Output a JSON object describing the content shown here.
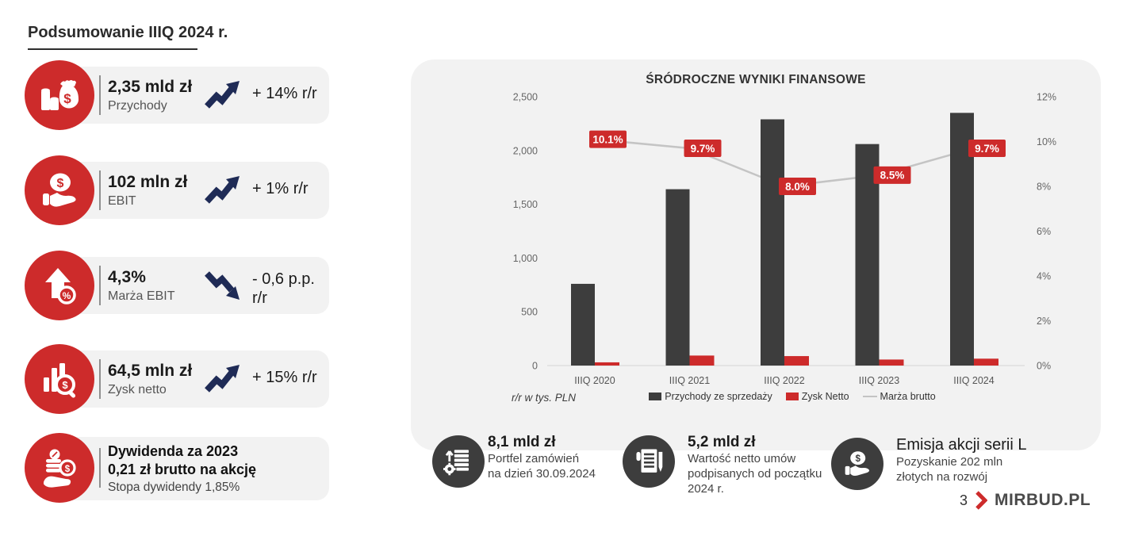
{
  "page": {
    "title": "Podsumowanie IIIQ 2024 r."
  },
  "colors": {
    "red": "#cd2b2b",
    "dark_bar": "#3d3d3d",
    "navy_arrow": "#1f2b56",
    "panel_gray": "#f2f2f2",
    "line_gray": "#c4c4c4"
  },
  "kpi_cards": [
    {
      "icon": "money-bag-icon",
      "value": "2,35 mld zł",
      "label": "Przychody",
      "trend": "up",
      "change": "+ 14% r/r"
    },
    {
      "icon": "hand-dollar-icon",
      "value": "102 mln zł",
      "label": "EBIT",
      "trend": "up",
      "change": "+ 1% r/r"
    },
    {
      "icon": "arrow-percent-icon",
      "value": "4,3%",
      "label": "Marża EBIT",
      "trend": "down",
      "change": "- 0,6 p.p.",
      "change_line2": "r/r"
    },
    {
      "icon": "chart-magnifier-icon",
      "value": "64,5 mln zł",
      "label": "Zysk netto",
      "trend": "up",
      "change": "+ 15% r/r"
    },
    {
      "icon": "coins-hand-icon",
      "title_lines": [
        "Dywidenda za 2023",
        "0,21 zł brutto na akcję"
      ],
      "label": "Stopa dywidendy 1,85%"
    }
  ],
  "chart_data": {
    "type": "bar+line",
    "title": "ŚRÓDROCZNE WYNIKI FINANSOWE",
    "categories": [
      "IIIQ 2020",
      "IIIQ 2021",
      "IIIQ 2022",
      "IIIQ 2023",
      "IIIQ 2024"
    ],
    "series": [
      {
        "name": "Przychody ze sprzedaży",
        "type": "bar",
        "color": "#3d3d3d",
        "axis": "left",
        "values": [
          760,
          1640,
          2290,
          2060,
          2350
        ]
      },
      {
        "name": "Zysk Netto",
        "type": "bar",
        "color": "#cd2b2b",
        "axis": "left",
        "values": [
          30,
          93,
          88,
          56,
          64
        ]
      },
      {
        "name": "Marża brutto",
        "type": "line",
        "color": "#c4c4c4",
        "axis": "right",
        "values": [
          10.1,
          9.7,
          8.0,
          8.5,
          9.7
        ],
        "labels": [
          "10.1%",
          "9.7%",
          "8.0%",
          "8.5%",
          "9.7%"
        ]
      }
    ],
    "left_axis": {
      "min": 0,
      "max": 2500,
      "step": 500,
      "ticks": [
        "0",
        "500",
        "1,000",
        "1,500",
        "2,000",
        "2,500"
      ]
    },
    "right_axis": {
      "min": 0,
      "max": 12,
      "step": 2,
      "ticks": [
        "0%",
        "2%",
        "4%",
        "6%",
        "8%",
        "10%",
        "12%"
      ]
    },
    "grid": "baseline-only",
    "legend_position": "bottom",
    "footnote": "r/r w tys. PLN"
  },
  "info_items": [
    {
      "icon": "order-stack-icon",
      "title": "8,1 mld zł",
      "lines": [
        "Portfel zamówień",
        "na dzień 30.09.2024"
      ]
    },
    {
      "icon": "contract-pen-icon",
      "title": "5,2 mld zł",
      "lines": [
        "Wartość netto umów",
        "podpisanych od początku",
        "2024 r."
      ]
    },
    {
      "icon": "hand-dollar-icon",
      "title": "Emisja akcji serii L",
      "lines": [
        "Pozyskanie 202 mln",
        "złotych na rozwój"
      ]
    }
  ],
  "footer": {
    "page_number": "3",
    "brand": "MIRBUD.PL"
  }
}
